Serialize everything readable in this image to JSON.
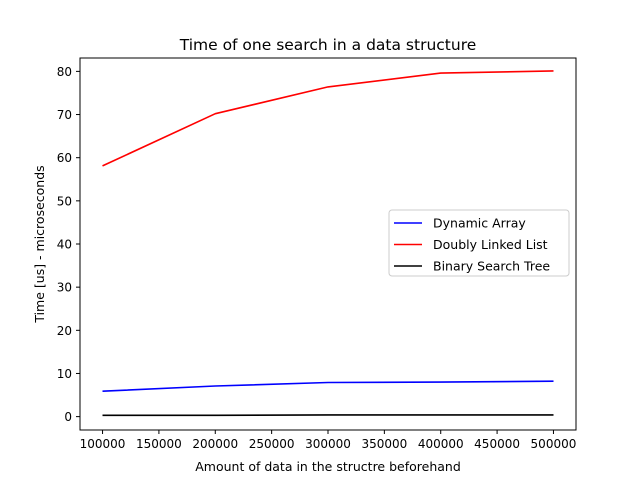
{
  "chart_data": {
    "type": "line",
    "title": "Time of one search in a data structure",
    "xlabel": "Amount of data in the structre beforehand",
    "ylabel": "Time [us] - microseconds",
    "x": [
      100000,
      200000,
      300000,
      400000,
      500000
    ],
    "xlim": [
      80000,
      520000
    ],
    "ylim": [
      -3.1,
      83.1
    ],
    "xticks": [
      100000,
      150000,
      200000,
      250000,
      300000,
      350000,
      400000,
      450000,
      500000
    ],
    "yticks": [
      0,
      10,
      20,
      30,
      40,
      50,
      60,
      70,
      80
    ],
    "grid": false,
    "legend_position": "center-right",
    "series": [
      {
        "name": "Dynamic Array",
        "color": "#0000ff",
        "values": [
          5.9,
          7.1,
          7.9,
          8.0,
          8.2
        ]
      },
      {
        "name": "Doubly Linked List",
        "color": "#ff0000",
        "values": [
          58.1,
          70.2,
          76.4,
          79.6,
          80.1
        ]
      },
      {
        "name": "Binary Search Tree",
        "color": "#000000",
        "values": [
          0.3,
          0.3,
          0.4,
          0.4,
          0.4
        ]
      }
    ]
  }
}
